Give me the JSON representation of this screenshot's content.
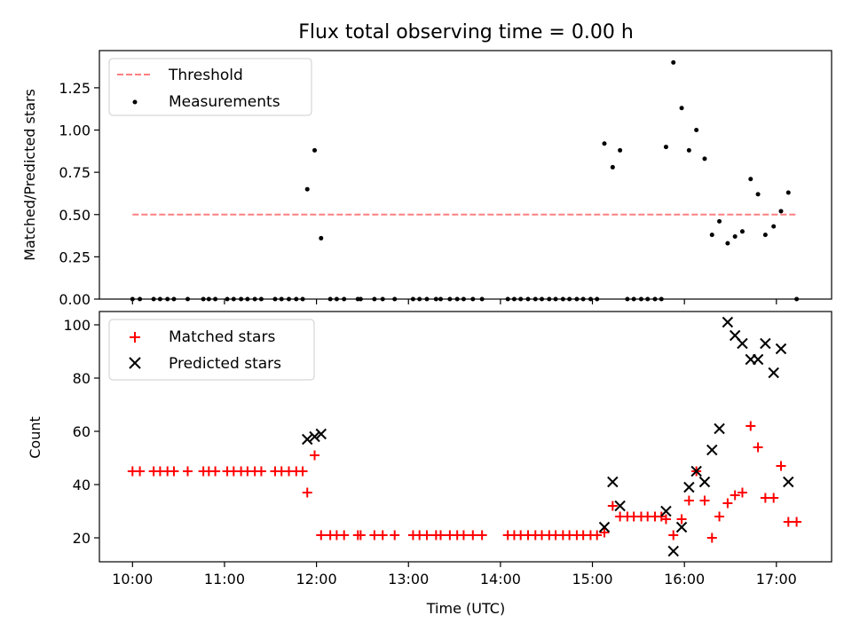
{
  "chart_data": [
    {
      "type": "scatter",
      "title": "Flux total observing time = 0.00 h",
      "xlabel": "",
      "ylabel": "Matched/Predicted stars",
      "xlim": [
        9.64,
        17.6
      ],
      "ylim": [
        0.0,
        1.47
      ],
      "yticks": [
        0.0,
        0.25,
        0.5,
        0.75,
        1.0,
        1.25
      ],
      "ytick_labels": [
        "0.00",
        "0.25",
        "0.50",
        "0.75",
        "1.00",
        "1.25"
      ],
      "xticks": [
        10,
        11,
        12,
        13,
        14,
        15,
        16,
        17
      ],
      "xtick_labels": [
        "",
        "",
        "",
        "",
        "",
        "",
        "",
        ""
      ],
      "threshold": {
        "name": "Threshold",
        "value": 0.5,
        "x_range": [
          10.0,
          17.22
        ],
        "color": "#ff7f7f"
      },
      "series": [
        {
          "name": "Measurements",
          "color": "#000000",
          "points": [
            [
              10.0,
              0
            ],
            [
              10.08,
              0
            ],
            [
              10.23,
              0
            ],
            [
              10.3,
              0
            ],
            [
              10.38,
              0
            ],
            [
              10.45,
              0
            ],
            [
              10.6,
              0
            ],
            [
              10.77,
              0
            ],
            [
              10.83,
              0
            ],
            [
              10.9,
              0
            ],
            [
              11.03,
              0
            ],
            [
              11.1,
              0
            ],
            [
              11.18,
              0
            ],
            [
              11.25,
              0
            ],
            [
              11.33,
              0
            ],
            [
              11.4,
              0
            ],
            [
              11.55,
              0
            ],
            [
              11.62,
              0
            ],
            [
              11.7,
              0
            ],
            [
              11.78,
              0
            ],
            [
              11.85,
              0
            ],
            [
              11.9,
              0.65
            ],
            [
              11.98,
              0.88
            ],
            [
              12.05,
              0.36
            ],
            [
              12.15,
              0
            ],
            [
              12.22,
              0
            ],
            [
              12.3,
              0
            ],
            [
              12.45,
              0
            ],
            [
              12.48,
              0
            ],
            [
              12.63,
              0
            ],
            [
              12.72,
              0
            ],
            [
              12.85,
              0
            ],
            [
              13.05,
              0
            ],
            [
              13.12,
              0
            ],
            [
              13.2,
              0
            ],
            [
              13.3,
              0
            ],
            [
              13.35,
              0
            ],
            [
              13.45,
              0
            ],
            [
              13.53,
              0
            ],
            [
              13.6,
              0
            ],
            [
              13.7,
              0
            ],
            [
              13.8,
              0
            ],
            [
              14.08,
              0
            ],
            [
              14.15,
              0
            ],
            [
              14.22,
              0
            ],
            [
              14.3,
              0
            ],
            [
              14.38,
              0
            ],
            [
              14.45,
              0
            ],
            [
              14.53,
              0
            ],
            [
              14.6,
              0
            ],
            [
              14.68,
              0
            ],
            [
              14.75,
              0
            ],
            [
              14.83,
              0
            ],
            [
              14.9,
              0
            ],
            [
              14.98,
              0
            ],
            [
              15.05,
              0
            ],
            [
              15.13,
              0.92
            ],
            [
              15.22,
              0.78
            ],
            [
              15.3,
              0.88
            ],
            [
              15.38,
              0
            ],
            [
              15.45,
              0
            ],
            [
              15.53,
              0
            ],
            [
              15.6,
              0
            ],
            [
              15.68,
              0
            ],
            [
              15.75,
              0
            ],
            [
              15.8,
              0.9
            ],
            [
              15.88,
              1.4
            ],
            [
              15.97,
              1.13
            ],
            [
              16.05,
              0.88
            ],
            [
              16.13,
              1.0
            ],
            [
              16.22,
              0.83
            ],
            [
              16.3,
              0.38
            ],
            [
              16.38,
              0.46
            ],
            [
              16.47,
              0.33
            ],
            [
              16.55,
              0.37
            ],
            [
              16.63,
              0.4
            ],
            [
              16.72,
              0.71
            ],
            [
              16.8,
              0.62
            ],
            [
              16.88,
              0.38
            ],
            [
              16.97,
              0.43
            ],
            [
              17.05,
              0.52
            ],
            [
              17.13,
              0.63
            ],
            [
              17.22,
              0
            ]
          ]
        }
      ]
    },
    {
      "type": "scatter",
      "title": "",
      "xlabel": "Time (UTC)",
      "ylabel": "Count",
      "xlim": [
        9.64,
        17.6
      ],
      "ylim": [
        11,
        105
      ],
      "yticks": [
        20,
        40,
        60,
        80,
        100
      ],
      "ytick_labels": [
        "20",
        "40",
        "60",
        "80",
        "100"
      ],
      "xticks": [
        10,
        11,
        12,
        13,
        14,
        15,
        16,
        17
      ],
      "xtick_labels": [
        "10:00",
        "11:00",
        "12:00",
        "13:00",
        "14:00",
        "15:00",
        "16:00",
        "17:00"
      ],
      "series": [
        {
          "name": "Matched stars",
          "marker": "plus",
          "color": "#ff0000",
          "points": [
            [
              10.0,
              45
            ],
            [
              10.08,
              45
            ],
            [
              10.23,
              45
            ],
            [
              10.3,
              45
            ],
            [
              10.38,
              45
            ],
            [
              10.45,
              45
            ],
            [
              10.6,
              45
            ],
            [
              10.77,
              45
            ],
            [
              10.83,
              45
            ],
            [
              10.9,
              45
            ],
            [
              11.03,
              45
            ],
            [
              11.1,
              45
            ],
            [
              11.18,
              45
            ],
            [
              11.25,
              45
            ],
            [
              11.33,
              45
            ],
            [
              11.4,
              45
            ],
            [
              11.55,
              45
            ],
            [
              11.62,
              45
            ],
            [
              11.7,
              45
            ],
            [
              11.78,
              45
            ],
            [
              11.85,
              45
            ],
            [
              11.9,
              37
            ],
            [
              11.98,
              51
            ],
            [
              12.05,
              21
            ],
            [
              12.15,
              21
            ],
            [
              12.22,
              21
            ],
            [
              12.3,
              21
            ],
            [
              12.45,
              21
            ],
            [
              12.48,
              21
            ],
            [
              12.63,
              21
            ],
            [
              12.72,
              21
            ],
            [
              12.85,
              21
            ],
            [
              13.05,
              21
            ],
            [
              13.12,
              21
            ],
            [
              13.2,
              21
            ],
            [
              13.3,
              21
            ],
            [
              13.35,
              21
            ],
            [
              13.45,
              21
            ],
            [
              13.53,
              21
            ],
            [
              13.6,
              21
            ],
            [
              13.7,
              21
            ],
            [
              13.8,
              21
            ],
            [
              14.08,
              21
            ],
            [
              14.15,
              21
            ],
            [
              14.22,
              21
            ],
            [
              14.3,
              21
            ],
            [
              14.38,
              21
            ],
            [
              14.45,
              21
            ],
            [
              14.53,
              21
            ],
            [
              14.6,
              21
            ],
            [
              14.68,
              21
            ],
            [
              14.75,
              21
            ],
            [
              14.83,
              21
            ],
            [
              14.9,
              21
            ],
            [
              14.98,
              21
            ],
            [
              15.05,
              21
            ],
            [
              15.13,
              22
            ],
            [
              15.22,
              32
            ],
            [
              15.3,
              28
            ],
            [
              15.38,
              28
            ],
            [
              15.45,
              28
            ],
            [
              15.53,
              28
            ],
            [
              15.6,
              28
            ],
            [
              15.68,
              28
            ],
            [
              15.75,
              28
            ],
            [
              15.8,
              27
            ],
            [
              15.88,
              21
            ],
            [
              15.97,
              27
            ],
            [
              16.05,
              34
            ],
            [
              16.13,
              45
            ],
            [
              16.22,
              34
            ],
            [
              16.3,
              20
            ],
            [
              16.38,
              28
            ],
            [
              16.47,
              33
            ],
            [
              16.55,
              36
            ],
            [
              16.63,
              37
            ],
            [
              16.72,
              62
            ],
            [
              16.8,
              54
            ],
            [
              16.88,
              35
            ],
            [
              16.97,
              35
            ],
            [
              17.05,
              47
            ],
            [
              17.13,
              26
            ],
            [
              17.22,
              26
            ]
          ]
        },
        {
          "name": "Predicted stars",
          "marker": "x",
          "color": "#000000",
          "points": [
            [
              11.9,
              57
            ],
            [
              11.98,
              58
            ],
            [
              12.05,
              59
            ],
            [
              15.13,
              24
            ],
            [
              15.22,
              41
            ],
            [
              15.3,
              32
            ],
            [
              15.8,
              30
            ],
            [
              15.88,
              15
            ],
            [
              15.97,
              24
            ],
            [
              16.05,
              39
            ],
            [
              16.13,
              45
            ],
            [
              16.22,
              41
            ],
            [
              16.3,
              53
            ],
            [
              16.38,
              61
            ],
            [
              16.47,
              101
            ],
            [
              16.55,
              96
            ],
            [
              16.63,
              93
            ],
            [
              16.72,
              87
            ],
            [
              16.8,
              87
            ],
            [
              16.88,
              93
            ],
            [
              16.97,
              82
            ],
            [
              17.05,
              91
            ],
            [
              17.13,
              41
            ]
          ]
        }
      ]
    }
  ]
}
